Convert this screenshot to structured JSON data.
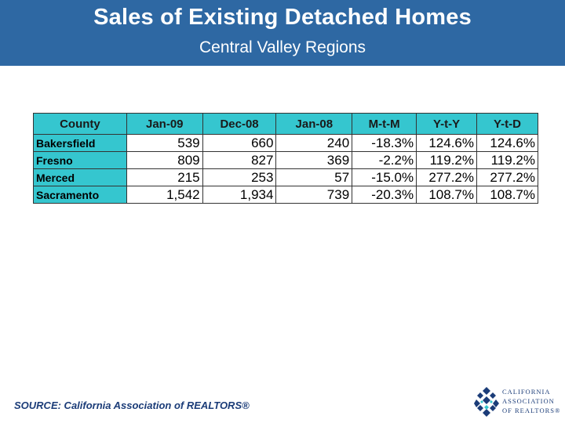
{
  "header": {
    "title": "Sales of Existing Detached Homes",
    "subtitle": "Central Valley Regions"
  },
  "table": {
    "columns": [
      "County",
      "Jan-09",
      "Dec-08",
      "Jan-08",
      "M-t-M",
      "Y-t-Y",
      "Y-t-D"
    ],
    "rows": [
      [
        "Bakersfield",
        "539",
        "660",
        "240",
        "-18.3%",
        "124.6%",
        "124.6%"
      ],
      [
        "Fresno",
        "809",
        "827",
        "369",
        "-2.2%",
        "119.2%",
        "119.2%"
      ],
      [
        "Merced",
        "215",
        "253",
        "57",
        "-15.0%",
        "277.2%",
        "277.2%"
      ],
      [
        "Sacramento",
        "1,542",
        "1,934",
        "739",
        "-20.3%",
        "108.7%",
        "108.7%"
      ]
    ]
  },
  "footer": {
    "source": "SOURCE: California Association of REALTORS®"
  },
  "logo": {
    "line1": "CALIFORNIA",
    "line2": "ASSOCIATION",
    "line3": "OF REALTORS®"
  },
  "colors": {
    "header_bg": "#2e68a3",
    "table_accent": "#35c6cf",
    "source_text": "#1b3c78"
  }
}
